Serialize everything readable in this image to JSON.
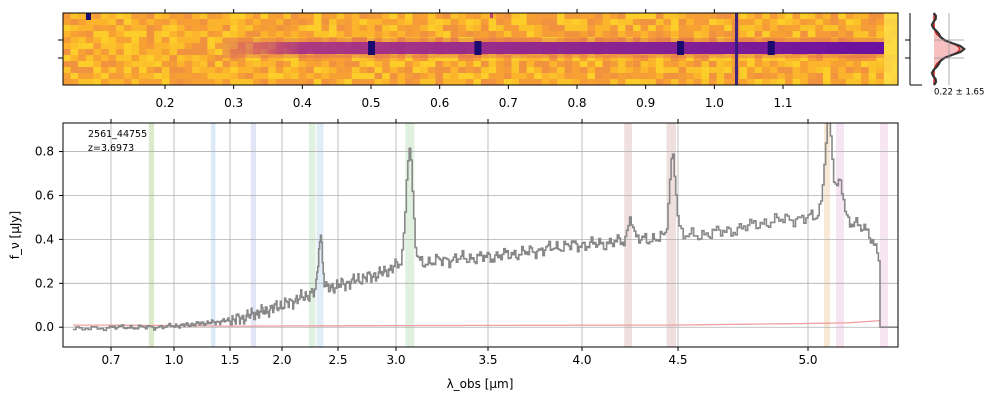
{
  "chart_data": [
    {
      "type": "heatmap",
      "name": "2d-spectrum",
      "description_colormap": "plasma",
      "x_axis": "wavelength_um",
      "x_ticks": [
        0.2,
        0.3,
        0.4,
        0.5,
        0.6,
        0.7,
        0.8,
        0.9,
        1.0,
        1.1
      ],
      "x_tick_labels": [
        "0.2",
        "0.3",
        "0.4",
        "0.5",
        "0.6",
        "0.7",
        "0.8",
        "0.9",
        "1.0",
        "1.1"
      ],
      "trace_start_um": 0.4,
      "bright_spots_um": [
        0.5,
        0.655,
        0.95,
        1.082
      ],
      "colors": {
        "background": "#f8a830",
        "trace": "#5a0aa0",
        "mid": "#c83f78"
      }
    },
    {
      "type": "line",
      "name": "cross-dispersion-profile",
      "annotation": "0.22 ± 1.65",
      "colors": {
        "data": "#333333",
        "model": "#d02020",
        "fill": "#f4b0b0"
      }
    },
    {
      "type": "line",
      "name": "1d-spectrum",
      "label_id": "2561_44755",
      "label_z": "z=3.6973",
      "ylabel": "f_ν [μJy]",
      "xlabel": "λ_obs [μm]",
      "ylim": [
        -0.09,
        0.93
      ],
      "y_ticks": [
        0.0,
        0.2,
        0.4,
        0.6,
        0.8
      ],
      "y_tick_labels": [
        "0.0",
        "0.2",
        "0.4",
        "0.6",
        "0.8"
      ],
      "x_ticks_um": [
        0.7,
        1.0,
        1.5,
        2.0,
        2.5,
        3.0,
        3.5,
        4.0,
        4.5,
        5.0
      ],
      "x_tick_labels": [
        "0.7",
        "1.0",
        "1.5",
        "2.0",
        "2.5",
        "3.0",
        "3.5",
        "4.0",
        "4.5",
        "5.0"
      ],
      "grid": true,
      "continuum": [
        [
          0.6,
          -0.01
        ],
        [
          0.7,
          0.0
        ],
        [
          0.8,
          0.0
        ],
        [
          0.9,
          0.0
        ],
        [
          1.0,
          0.005
        ],
        [
          1.1,
          0.01
        ],
        [
          1.2,
          0.015
        ],
        [
          1.4,
          0.025
        ],
        [
          1.6,
          0.04
        ],
        [
          1.8,
          0.07
        ],
        [
          2.0,
          0.1
        ],
        [
          2.2,
          0.14
        ],
        [
          2.3,
          0.16
        ],
        [
          2.5,
          0.19
        ],
        [
          2.7,
          0.22
        ],
        [
          2.9,
          0.25
        ],
        [
          3.0,
          0.28
        ],
        [
          3.1,
          0.29
        ],
        [
          3.3,
          0.31
        ],
        [
          3.5,
          0.32
        ],
        [
          3.7,
          0.34
        ],
        [
          3.9,
          0.37
        ],
        [
          4.1,
          0.38
        ],
        [
          4.3,
          0.4
        ],
        [
          4.5,
          0.41
        ],
        [
          4.7,
          0.44
        ],
        [
          4.8,
          0.47
        ],
        [
          4.9,
          0.49
        ],
        [
          5.0,
          0.5
        ],
        [
          5.1,
          0.5
        ],
        [
          5.2,
          0.48
        ],
        [
          5.3,
          0.44
        ],
        [
          5.36,
          0.3
        ]
      ],
      "emission_lines": [
        {
          "center_um": 2.34,
          "peak": 0.42,
          "width_um": 0.018
        },
        {
          "center_um": 3.07,
          "peak": 0.82,
          "width_um": 0.018
        },
        {
          "center_um": 4.25,
          "peak": 0.51,
          "width_um": 0.012
        },
        {
          "center_um": 4.47,
          "peak": 0.79,
          "width_um": 0.016
        },
        {
          "center_um": 5.1,
          "peak": 0.93,
          "width_um": 0.02
        },
        {
          "center_um": 5.16,
          "peak": 0.66,
          "width_um": 0.016
        }
      ],
      "uncertainty_curve": [
        [
          0.6,
          0.01
        ],
        [
          1.5,
          0.005
        ],
        [
          4.5,
          0.01
        ],
        [
          5.2,
          0.02
        ],
        [
          5.36,
          0.03
        ]
      ],
      "shaded_bands": [
        {
          "x0_um": 0.88,
          "x1_um": 0.905,
          "color": "#cfe4b8"
        },
        {
          "x0_um": 1.33,
          "x1_um": 1.37,
          "color": "#cfe2f5"
        },
        {
          "x0_um": 1.7,
          "x1_um": 1.75,
          "color": "#d8dcf2"
        },
        {
          "x0_um": 2.24,
          "x1_um": 2.3,
          "color": "#d5ecd5"
        },
        {
          "x0_um": 2.31,
          "x1_um": 2.37,
          "color": "#d6e6f4"
        },
        {
          "x0_um": 3.05,
          "x1_um": 3.1,
          "color": "#d5ecd5"
        },
        {
          "x0_um": 4.22,
          "x1_um": 4.26,
          "color": "#ead4d4"
        },
        {
          "x0_um": 4.44,
          "x1_um": 4.49,
          "color": "#ead4d4"
        },
        {
          "x0_um": 5.08,
          "x1_um": 5.11,
          "color": "#f6e2c8"
        },
        {
          "x0_um": 5.14,
          "x1_um": 5.18,
          "color": "#f5dcef"
        },
        {
          "x0_um": 5.36,
          "x1_um": 5.4,
          "color": "#f5dcef"
        }
      ],
      "colors": {
        "line": "#888888",
        "uncertainty": "#f0a0a0",
        "grid": "#b0b0b0"
      }
    }
  ]
}
